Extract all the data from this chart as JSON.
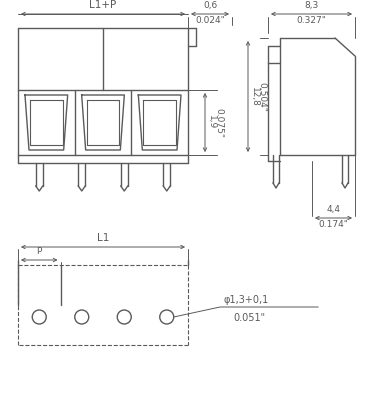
{
  "bg_color": "#ffffff",
  "lc": "#5a5a5a",
  "dc": "#5a5a5a",
  "fig_width": 3.9,
  "fig_height": 4.0,
  "annotations": {
    "L1_plus_P": "L1+P",
    "dim_06": "0,6",
    "dim_024": "0.024\"",
    "dim_83": "8,3",
    "dim_327": "0.327\"",
    "dim_19": "1,9",
    "dim_075": "0.075\"",
    "dim_128": "12,8",
    "dim_504": "0.504\"",
    "dim_44": "4,4",
    "dim_174": "0.174\"",
    "dim_phi": "φ1,3+0,1",
    "dim_051": "0.051\"",
    "L1": "L1",
    "P": "P"
  }
}
